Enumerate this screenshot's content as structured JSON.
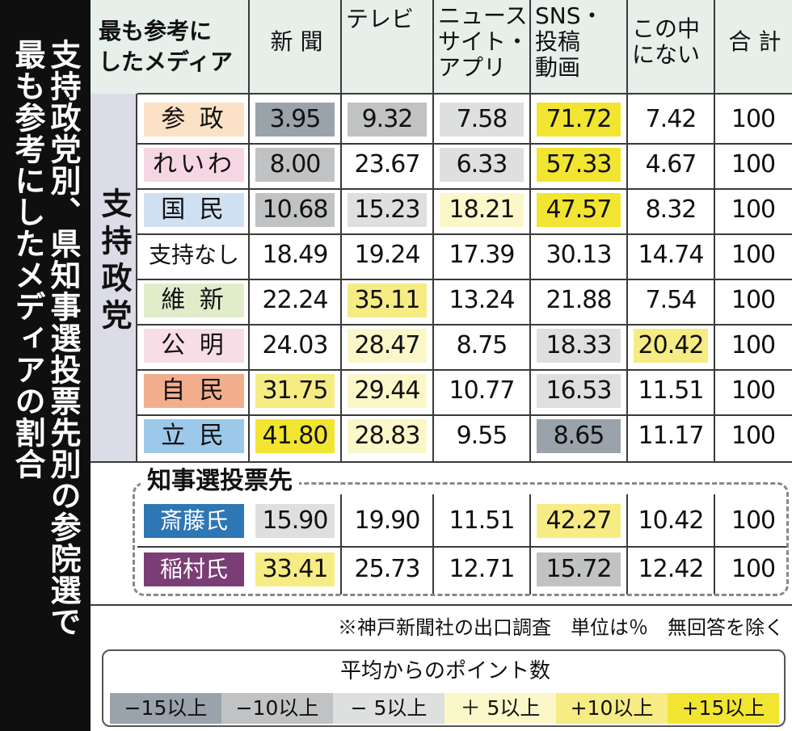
{
  "sidebar": {
    "title_lines": [
      "支持政党別、県知事選投票先別の参院選で",
      "最も参考にしたメディアの割合"
    ]
  },
  "table": {
    "corner_label": "最も参考に\nしたメディア",
    "side_label": "支持政党",
    "government_section_label": "知事選投票先",
    "note": "※神戸新聞社の出口調査　単位は％　無回答を除く"
  },
  "legend": {
    "title": "平均からのポイント数",
    "items": [
      {
        "label": "−15以上",
        "color": "#9aa3ab"
      },
      {
        "label": "−10以上",
        "color": "#c0c2c3"
      },
      {
        "label": "− 5以上",
        "color": "#dedfdf"
      },
      {
        "label": "＋ 5以上",
        "color": "#fbf7c9"
      },
      {
        "label": "+10以上",
        "color": "#f6ec83"
      },
      {
        "label": "+15以上",
        "color": "#f2e531"
      }
    ]
  },
  "chart_data": {
    "type": "table",
    "title": "支持政党別、県知事選投票先別の参院選で最も参考にしたメディアの割合",
    "unit": "%",
    "columns": [
      "新 聞",
      "テレビ",
      "ニュース\nサイト・\nアプリ",
      "SNS・\n投稿\n動画",
      "この中\nにない",
      "合 計"
    ],
    "rows": [
      {
        "label": "参 政",
        "group": "支持政党",
        "label_color": "#fbe2c6",
        "values": [
          "3.95",
          "9.32",
          "7.58",
          "71.72",
          "7.42",
          "100"
        ],
        "shading": [
          "#9aa3ab",
          "#c0c2c3",
          "#dedfdf",
          "#f2e531",
          "",
          ""
        ]
      },
      {
        "label": "れいわ",
        "group": "支持政党",
        "label_color": "#f6d6e3",
        "values": [
          "8.00",
          "23.67",
          "6.33",
          "57.33",
          "4.67",
          "100"
        ],
        "shading": [
          "#c0c2c3",
          "",
          "#dedfdf",
          "#f2e531",
          "",
          ""
        ]
      },
      {
        "label": "国 民",
        "group": "支持政党",
        "label_color": "#cfe0f2",
        "values": [
          "10.68",
          "15.23",
          "18.21",
          "47.57",
          "8.32",
          "100"
        ],
        "shading": [
          "#c0c2c3",
          "#dedfdf",
          "#fbf7c9",
          "#f2e531",
          "",
          ""
        ]
      },
      {
        "label": "支持なし",
        "group": "支持政党",
        "label_color": "",
        "values": [
          "18.49",
          "19.24",
          "17.39",
          "30.13",
          "14.74",
          "100"
        ],
        "shading": [
          "",
          "",
          "",
          "",
          "",
          ""
        ]
      },
      {
        "label": "維 新",
        "group": "支持政党",
        "label_color": "#e1eccb",
        "values": [
          "22.24",
          "35.11",
          "13.24",
          "21.88",
          "7.54",
          "100"
        ],
        "shading": [
          "",
          "#f6ec83",
          "",
          "",
          "",
          ""
        ]
      },
      {
        "label": "公 明",
        "group": "支持政党",
        "label_color": "#f7dde5",
        "values": [
          "24.03",
          "28.47",
          "8.75",
          "18.33",
          "20.42",
          "100"
        ],
        "shading": [
          "",
          "#fbf7c9",
          "",
          "#dedfdf",
          "#f6ec83",
          ""
        ]
      },
      {
        "label": "自 民",
        "group": "支持政党",
        "label_color": "#f2ae8c",
        "values": [
          "31.75",
          "29.44",
          "10.77",
          "16.53",
          "11.51",
          "100"
        ],
        "shading": [
          "#f6ec83",
          "#fbf7c9",
          "",
          "#dedfdf",
          "",
          ""
        ]
      },
      {
        "label": "立 民",
        "group": "支持政党",
        "label_color": "#9cc8ea",
        "values": [
          "41.80",
          "28.83",
          "9.55",
          "8.65",
          "11.17",
          "100"
        ],
        "shading": [
          "#f2e531",
          "#fbf7c9",
          "",
          "#9aa3ab",
          "",
          ""
        ]
      },
      {
        "label": "斎藤氏",
        "group": "知事選投票先",
        "label_color": "#2f76b5",
        "values": [
          "15.90",
          "19.90",
          "11.51",
          "42.27",
          "10.42",
          "100"
        ],
        "shading": [
          "#dedfdf",
          "",
          "",
          "#f6ec83",
          "",
          ""
        ]
      },
      {
        "label": "稲村氏",
        "group": "知事選投票先",
        "label_color": "#7a3d75",
        "values": [
          "33.41",
          "25.73",
          "12.71",
          "15.72",
          "12.42",
          "100"
        ],
        "shading": [
          "#f6ec83",
          "",
          "",
          "#c0c2c3",
          "",
          ""
        ]
      }
    ]
  }
}
